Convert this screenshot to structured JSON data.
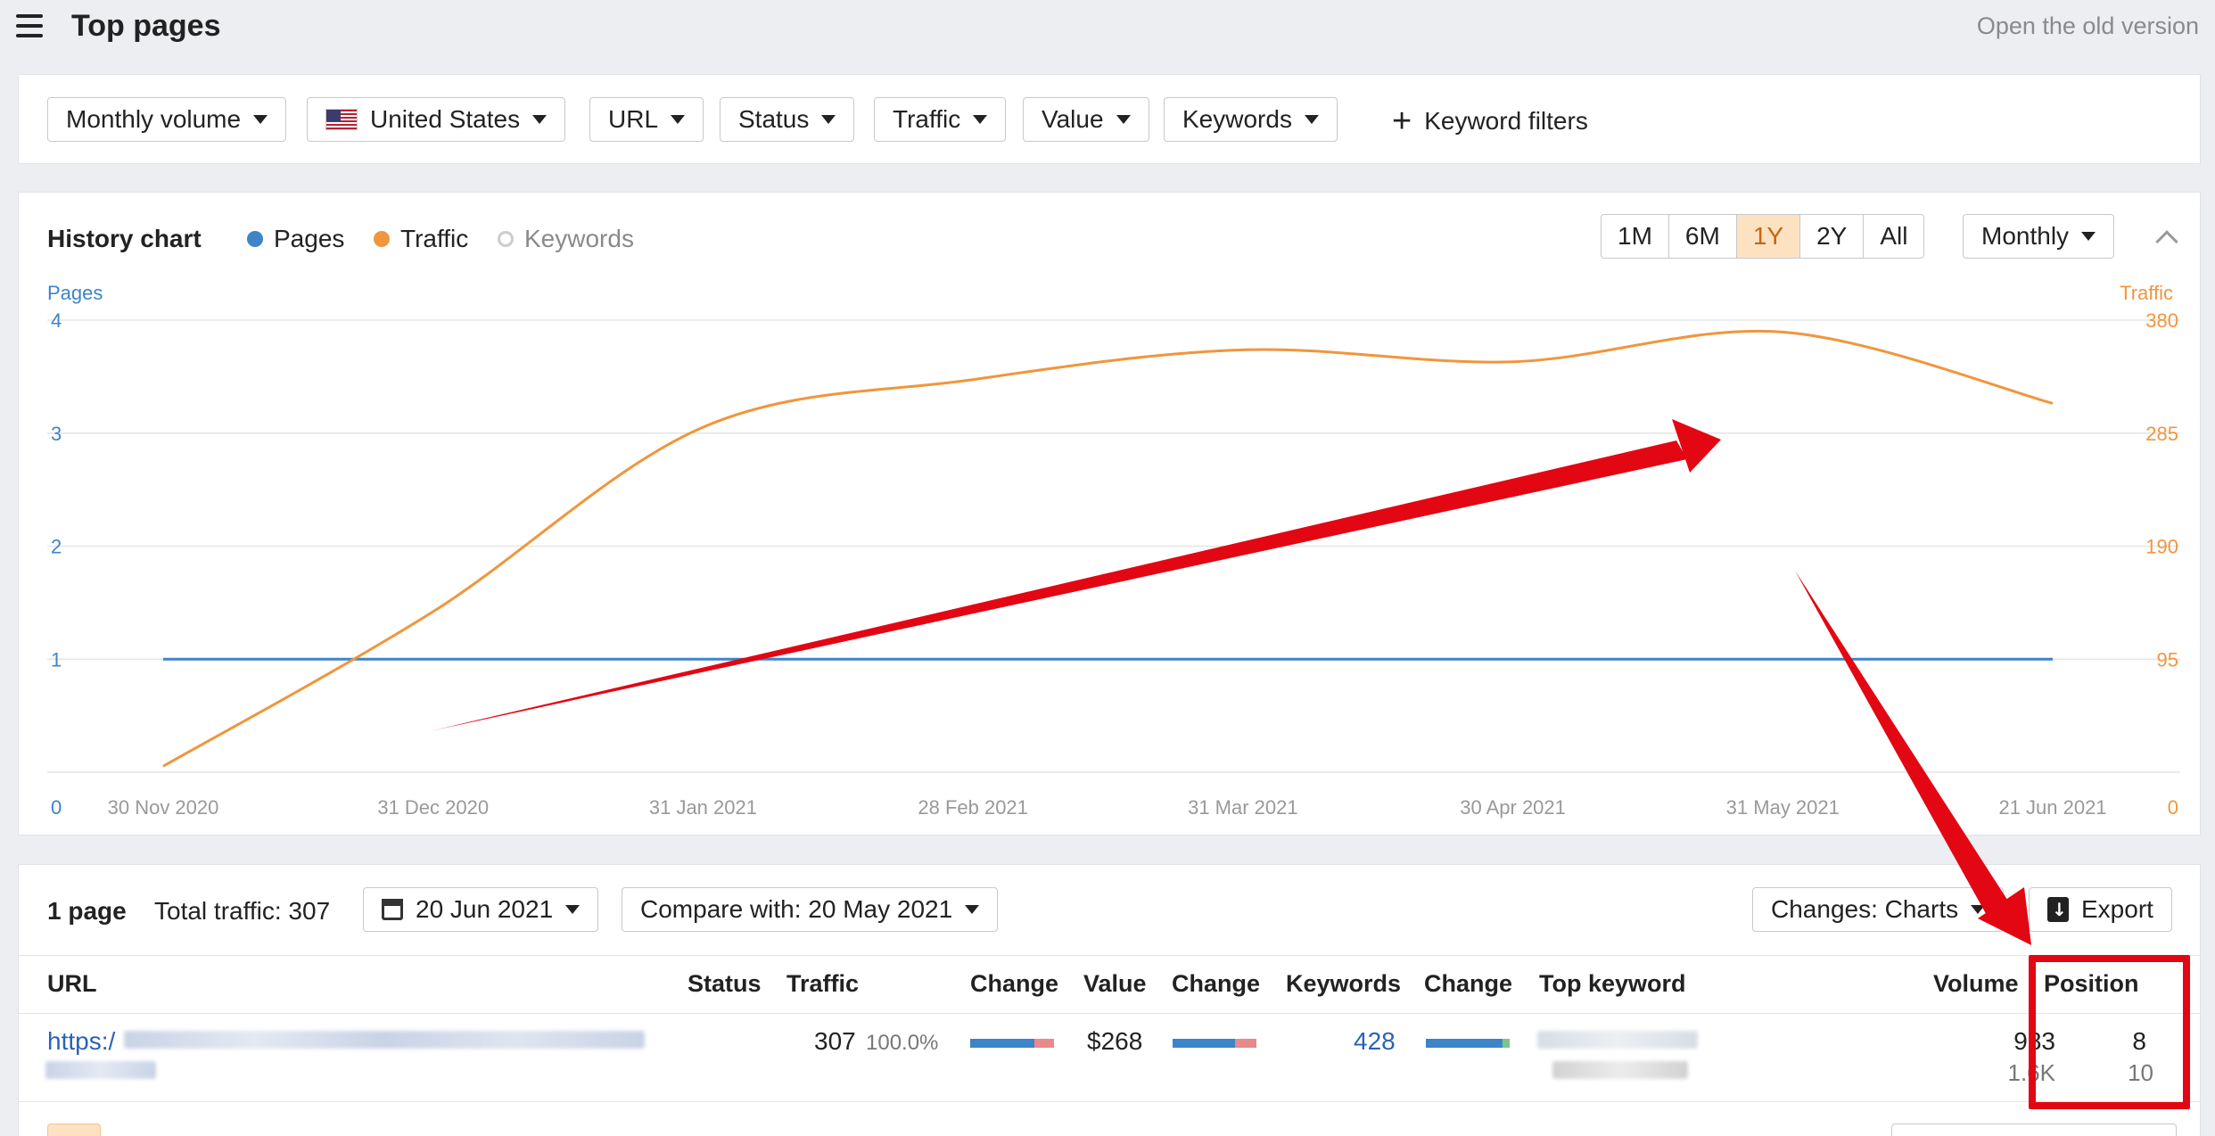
{
  "header": {
    "title": "Top pages",
    "old_version_link": "Open the old version"
  },
  "filters": {
    "volume": "Monthly volume",
    "country": "United States",
    "url": "URL",
    "status": "Status",
    "traffic": "Traffic",
    "value": "Value",
    "keywords": "Keywords",
    "keyword_filters": "Keyword filters"
  },
  "history": {
    "title": "History chart",
    "legend": [
      {
        "label": "Pages",
        "color": "#3d84c8",
        "active": true
      },
      {
        "label": "Traffic",
        "color": "#f0963c",
        "active": true
      },
      {
        "label": "Keywords",
        "color": "#cccccc",
        "active": false
      }
    ],
    "ranges": [
      "1M",
      "6M",
      "1Y",
      "2Y",
      "All"
    ],
    "active_range": "1Y",
    "interval": "Monthly",
    "left_axis_title": "Pages",
    "right_axis_title": "Traffic"
  },
  "chart_data": {
    "type": "line",
    "x": [
      "30 Nov 2020",
      "31 Dec 2020",
      "31 Jan 2021",
      "28 Feb 2021",
      "31 Mar 2021",
      "30 Apr 2021",
      "31 May 2021",
      "21 Jun 2021"
    ],
    "series": [
      {
        "name": "Pages",
        "axis": "left",
        "color": "#3d84c8",
        "values": [
          1,
          1,
          1,
          1,
          1,
          1,
          1,
          1
        ]
      },
      {
        "name": "Traffic",
        "axis": "right",
        "color": "#f0963c",
        "values": [
          5,
          135,
          290,
          330,
          355,
          345,
          370,
          310
        ]
      }
    ],
    "y_left": {
      "ticks": [
        "0",
        "1",
        "2",
        "3",
        "4"
      ],
      "range": [
        0,
        4
      ]
    },
    "y_right": {
      "ticks": [
        "0",
        "95",
        "190",
        "285",
        "380"
      ],
      "range": [
        0,
        380
      ]
    },
    "grid": true
  },
  "table_toolbar": {
    "count": "1 page",
    "total_traffic": "Total traffic: 307",
    "date": "20 Jun 2021",
    "compare": "Compare with: 20 May 2021",
    "changes": "Changes: Charts",
    "export": "Export"
  },
  "table": {
    "columns": {
      "url": "URL",
      "status": "Status",
      "traffic": "Traffic",
      "traffic_change": "Change",
      "value": "Value",
      "value_change": "Change",
      "keywords": "Keywords",
      "keywords_change": "Change",
      "top_keyword": "Top keyword",
      "volume": "Volume",
      "position": "Position"
    },
    "rows": [
      {
        "url_prefix": "https:/",
        "traffic": "307",
        "traffic_share": "100.0%",
        "value": "$268",
        "keywords": "428",
        "volume": "983",
        "volume_secondary": "1.6K",
        "position": "8",
        "position_secondary": "10"
      }
    ]
  },
  "annotation": {
    "color": "#e30613"
  }
}
